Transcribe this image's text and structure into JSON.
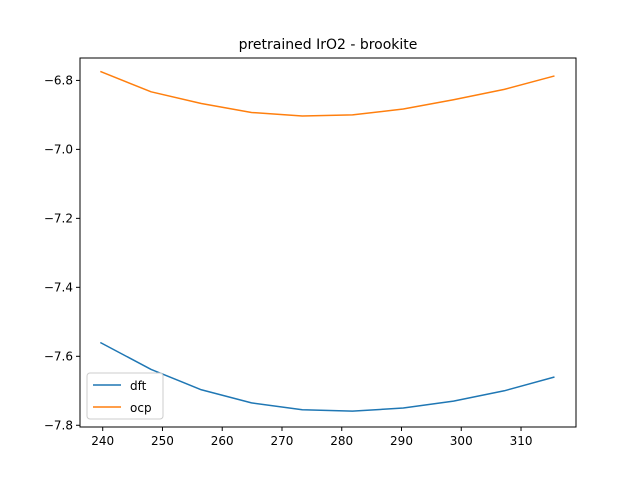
{
  "chart_data": {
    "type": "line",
    "title": "pretrained IrO2 - brookite",
    "xlabel": "",
    "ylabel": "",
    "xlim": [
      236.2,
      319.2
    ],
    "ylim": [
      -7.805,
      -6.735
    ],
    "x_ticks": [
      240,
      250,
      260,
      270,
      280,
      290,
      300,
      310
    ],
    "y_ticks": [
      -7.8,
      -7.6,
      -7.4,
      -7.2,
      -7.0,
      -6.8
    ],
    "x_tick_labels": [
      "240",
      "250",
      "260",
      "270",
      "280",
      "290",
      "300",
      "310"
    ],
    "y_tick_labels": [
      "−7.8",
      "−7.6",
      "−7.4",
      "−7.2",
      "−7.0",
      "−6.8"
    ],
    "grid": false,
    "legend_position": "lower-left",
    "series": [
      {
        "name": "dft",
        "color": "#1f77b4",
        "x": [
          239.6,
          248.1,
          256.5,
          264.9,
          273.4,
          281.8,
          290.3,
          298.7,
          307.2,
          315.6
        ],
        "y": [
          -7.56,
          -7.638,
          -7.697,
          -7.735,
          -7.755,
          -7.759,
          -7.75,
          -7.73,
          -7.7,
          -7.66
        ]
      },
      {
        "name": "ocp",
        "color": "#ff7f0e",
        "x": [
          239.6,
          248.1,
          256.5,
          264.9,
          273.4,
          281.8,
          290.3,
          298.7,
          307.2,
          315.6
        ],
        "y": [
          -6.774,
          -6.833,
          -6.867,
          -6.893,
          -6.903,
          -6.9,
          -6.883,
          -6.856,
          -6.826,
          -6.787
        ]
      }
    ]
  }
}
